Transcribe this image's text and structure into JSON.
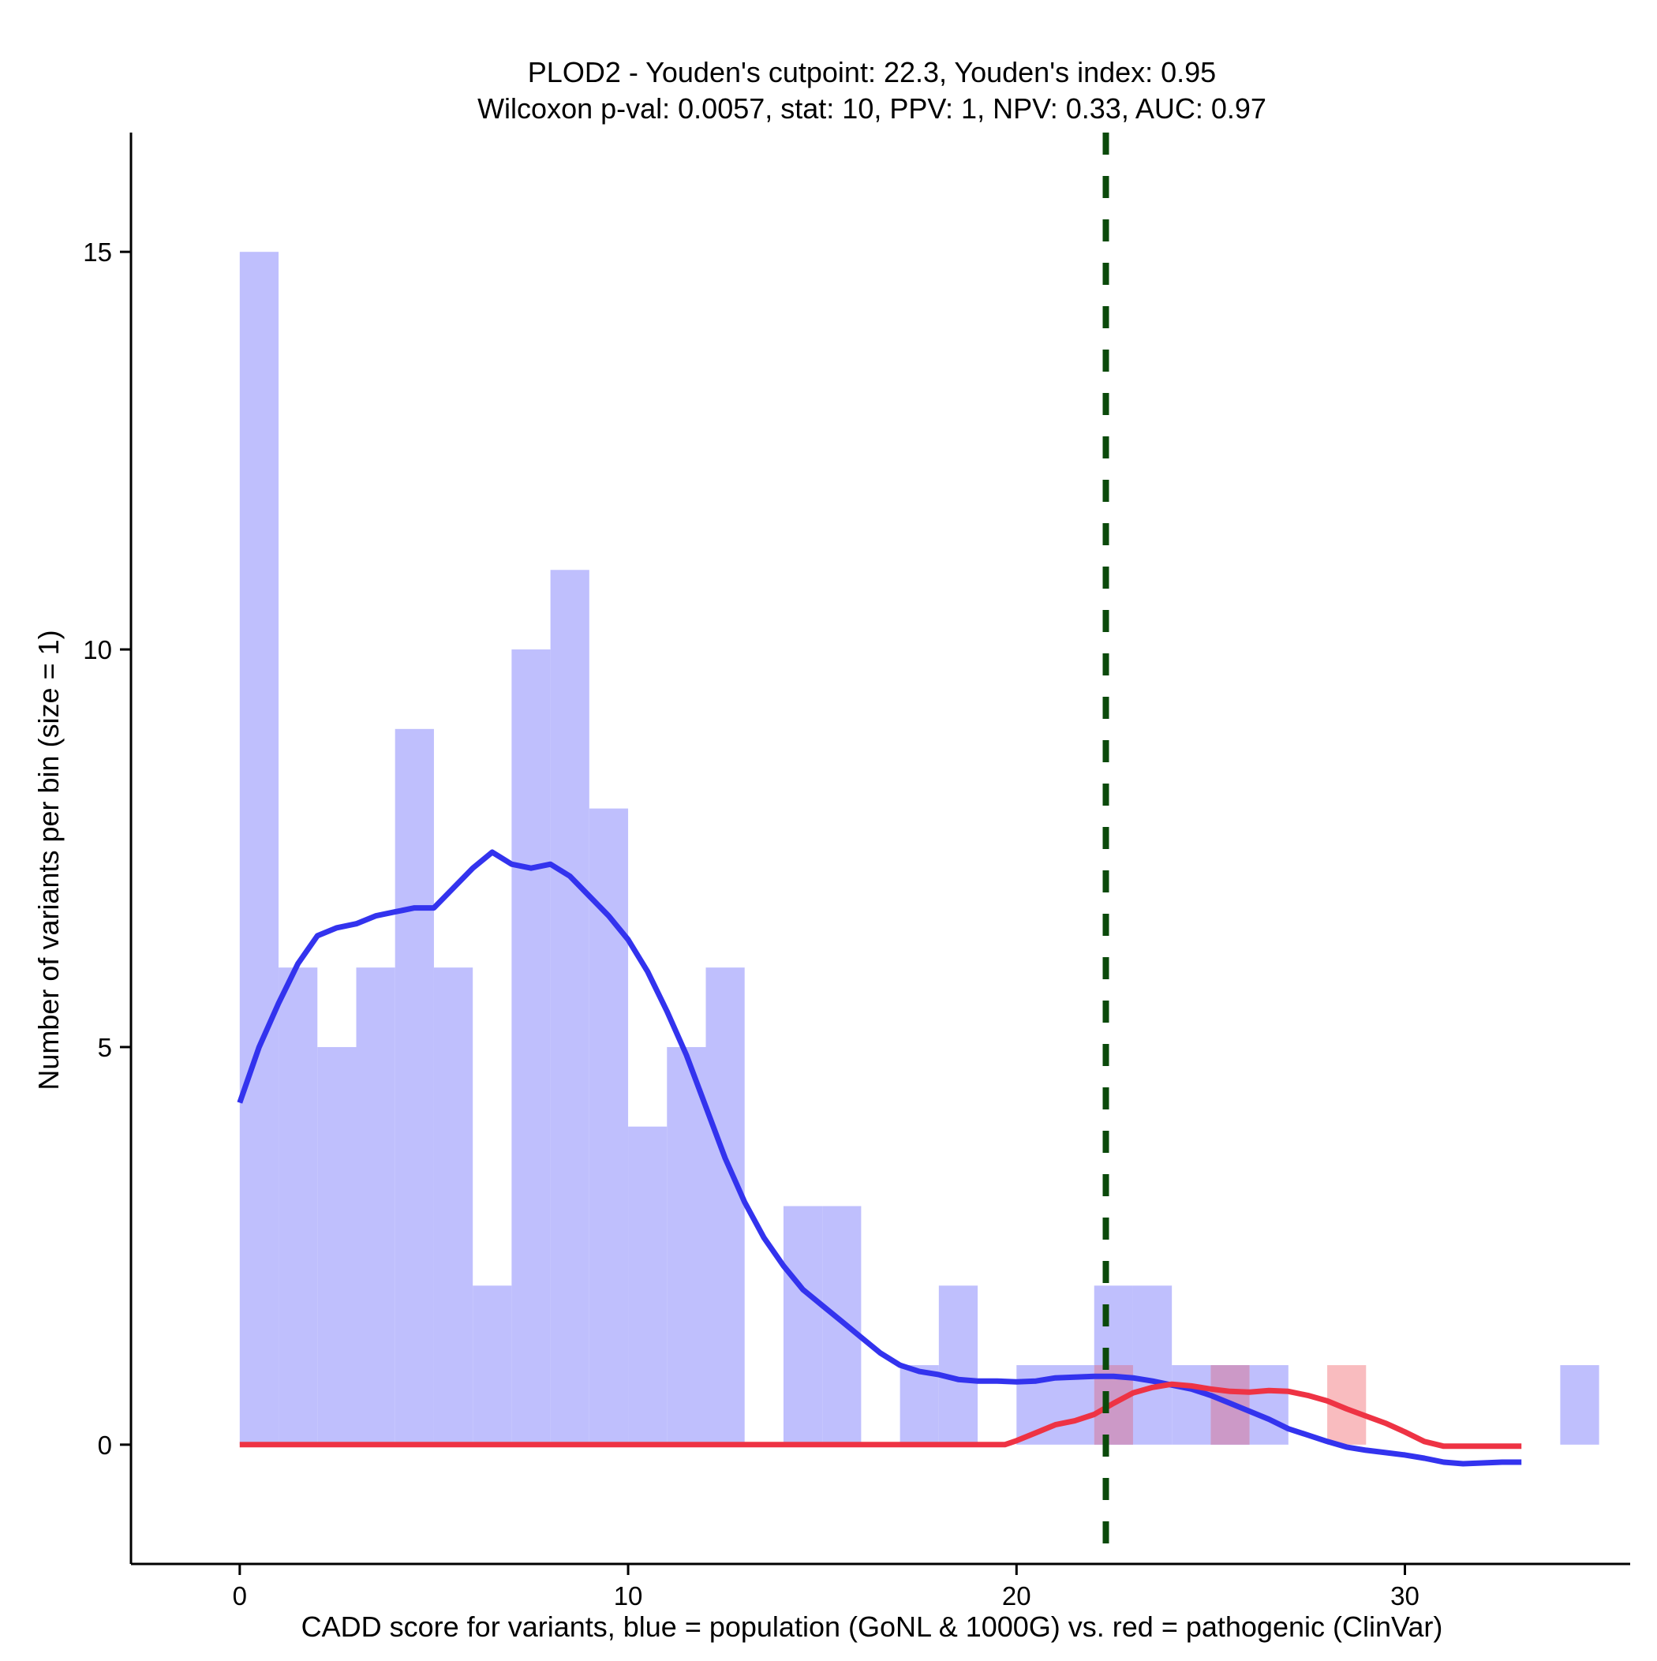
{
  "chart_data": {
    "type": "histogram",
    "title": "PLOD2 - Youden's cutpoint: 22.3, Youden's index: 0.95",
    "subtitle": "Wilcoxon p-val: 0.0057, stat: 10, PPV: 1, NPV: 0.33, AUC: 0.97",
    "xlabel": "CADD score for variants, blue = population (GoNL & 1000G) vs. red = pathogenic (ClinVar)",
    "ylabel": "Number of variants per bin (size = 1)",
    "xlim": [
      -2.8,
      35.8
    ],
    "ylim": [
      -1.5,
      16.5
    ],
    "x_ticks": [
      0,
      10,
      20,
      30
    ],
    "x_tick_labels": [
      "0",
      "10",
      "20",
      "30"
    ],
    "y_ticks": [
      0,
      5,
      10,
      15
    ],
    "y_tick_labels": [
      "0",
      "5",
      "10",
      "15"
    ],
    "bin_width": 1,
    "cutpoint": 22.3,
    "colors": {
      "population_fill": "#BFBFFD",
      "pathogenic_fill": "#F9BCBF",
      "overlap_fill": "#CC99C7",
      "population_line": "#3333EE",
      "pathogenic_line": "#EE3344",
      "cutpoint_line": "#0B4A0B",
      "axis": "#000000"
    },
    "series": [
      {
        "name": "population (GoNL & 1000G)",
        "bins": [
          {
            "x0": 0,
            "count": 15
          },
          {
            "x0": 1,
            "count": 6
          },
          {
            "x0": 2,
            "count": 5
          },
          {
            "x0": 3,
            "count": 6
          },
          {
            "x0": 4,
            "count": 9
          },
          {
            "x0": 5,
            "count": 6
          },
          {
            "x0": 6,
            "count": 2
          },
          {
            "x0": 7,
            "count": 10
          },
          {
            "x0": 8,
            "count": 11
          },
          {
            "x0": 9,
            "count": 8
          },
          {
            "x0": 10,
            "count": 4
          },
          {
            "x0": 11,
            "count": 5
          },
          {
            "x0": 12,
            "count": 6
          },
          {
            "x0": 14,
            "count": 3
          },
          {
            "x0": 15,
            "count": 3
          },
          {
            "x0": 17,
            "count": 1
          },
          {
            "x0": 18,
            "count": 2
          },
          {
            "x0": 20,
            "count": 1
          },
          {
            "x0": 21,
            "count": 1
          },
          {
            "x0": 22,
            "count": 2
          },
          {
            "x0": 23,
            "count": 2
          },
          {
            "x0": 24,
            "count": 1
          },
          {
            "x0": 25,
            "count": 1
          },
          {
            "x0": 26,
            "count": 1
          },
          {
            "x0": 34,
            "count": 1
          }
        ],
        "density_line": [
          [
            0,
            4.3
          ],
          [
            0.5,
            5.0
          ],
          [
            1,
            5.55
          ],
          [
            1.5,
            6.05
          ],
          [
            2,
            6.4
          ],
          [
            2.5,
            6.5
          ],
          [
            3,
            6.55
          ],
          [
            3.5,
            6.65
          ],
          [
            4,
            6.7
          ],
          [
            4.5,
            6.75
          ],
          [
            5,
            6.75
          ],
          [
            5.5,
            7.0
          ],
          [
            6,
            7.25
          ],
          [
            6.5,
            7.45
          ],
          [
            7,
            7.3
          ],
          [
            7.5,
            7.25
          ],
          [
            8,
            7.3
          ],
          [
            8.5,
            7.15
          ],
          [
            9,
            6.9
          ],
          [
            9.5,
            6.65
          ],
          [
            10,
            6.35
          ],
          [
            10.5,
            5.95
          ],
          [
            11,
            5.45
          ],
          [
            11.5,
            4.9
          ],
          [
            12,
            4.25
          ],
          [
            12.5,
            3.6
          ],
          [
            13,
            3.05
          ],
          [
            13.5,
            2.6
          ],
          [
            14,
            2.25
          ],
          [
            14.5,
            1.95
          ],
          [
            15,
            1.75
          ],
          [
            15.5,
            1.55
          ],
          [
            16,
            1.35
          ],
          [
            16.5,
            1.15
          ],
          [
            17,
            1.0
          ],
          [
            17.5,
            0.92
          ],
          [
            18,
            0.88
          ],
          [
            18.5,
            0.82
          ],
          [
            19,
            0.8
          ],
          [
            19.5,
            0.8
          ],
          [
            20,
            0.79
          ],
          [
            20.5,
            0.8
          ],
          [
            21,
            0.84
          ],
          [
            21.5,
            0.85
          ],
          [
            22,
            0.86
          ],
          [
            22.5,
            0.86
          ],
          [
            23,
            0.84
          ],
          [
            23.5,
            0.8
          ],
          [
            24,
            0.75
          ],
          [
            24.5,
            0.7
          ],
          [
            25,
            0.62
          ],
          [
            25.5,
            0.52
          ],
          [
            26,
            0.42
          ],
          [
            26.5,
            0.32
          ],
          [
            27,
            0.2
          ],
          [
            27.5,
            0.12
          ],
          [
            28,
            0.04
          ],
          [
            28.5,
            -0.03
          ],
          [
            29,
            -0.07
          ],
          [
            29.5,
            -0.1
          ],
          [
            30,
            -0.13
          ],
          [
            30.5,
            -0.17
          ],
          [
            31,
            -0.22
          ],
          [
            31.5,
            -0.24
          ],
          [
            32,
            -0.23
          ],
          [
            32.5,
            -0.22
          ],
          [
            33,
            -0.22
          ]
        ]
      },
      {
        "name": "pathogenic (ClinVar)",
        "bins": [
          {
            "x0": 22,
            "count": 1
          },
          {
            "x0": 25,
            "count": 1
          },
          {
            "x0": 28,
            "count": 1
          }
        ],
        "density_line": [
          [
            0,
            0
          ],
          [
            5,
            0
          ],
          [
            10,
            0
          ],
          [
            15,
            0
          ],
          [
            19.7,
            0
          ],
          [
            20,
            0.05
          ],
          [
            20.5,
            0.15
          ],
          [
            21,
            0.25
          ],
          [
            21.5,
            0.3
          ],
          [
            22,
            0.38
          ],
          [
            22.5,
            0.52
          ],
          [
            23,
            0.65
          ],
          [
            23.5,
            0.72
          ],
          [
            24,
            0.76
          ],
          [
            24.5,
            0.74
          ],
          [
            25,
            0.7
          ],
          [
            25.5,
            0.67
          ],
          [
            26,
            0.66
          ],
          [
            26.5,
            0.68
          ],
          [
            27,
            0.67
          ],
          [
            27.5,
            0.62
          ],
          [
            28,
            0.55
          ],
          [
            28.5,
            0.45
          ],
          [
            29,
            0.36
          ],
          [
            29.5,
            0.27
          ],
          [
            30,
            0.16
          ],
          [
            30.5,
            0.04
          ],
          [
            31,
            -0.02
          ],
          [
            31.5,
            -0.02
          ],
          [
            32,
            -0.02
          ],
          [
            33,
            -0.02
          ]
        ]
      }
    ]
  }
}
